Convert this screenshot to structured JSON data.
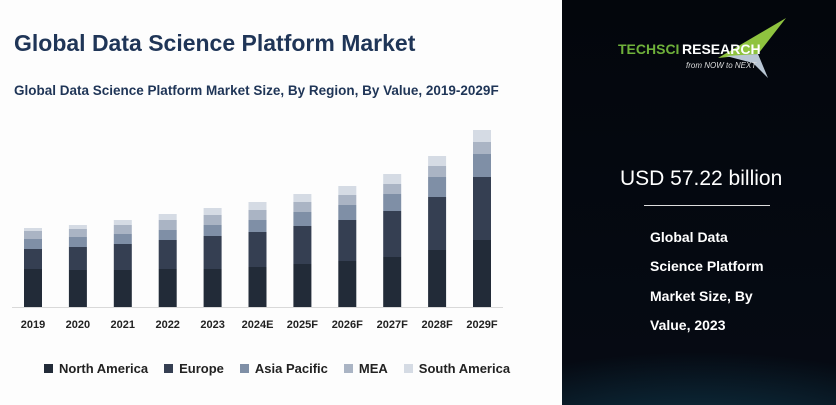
{
  "title": "Global Data Science Platform Market",
  "chart_data": {
    "type": "bar",
    "stacked": true,
    "title": "Global Data Science Platform Market Size, By Region, By Value, 2019-2029F",
    "categories": [
      "2019",
      "2020",
      "2021",
      "2022",
      "2023",
      "2024E",
      "2025F",
      "2026F",
      "2027F",
      "2028F",
      "2029F"
    ],
    "series": [
      {
        "name": "North America",
        "color": "#222b38",
        "values": [
          38,
          37,
          37,
          38,
          38,
          40,
          43,
          46,
          50,
          57,
          67
        ]
      },
      {
        "name": "Europe",
        "color": "#353f52",
        "values": [
          20,
          23,
          26,
          29,
          33,
          35,
          38,
          41,
          46,
          53,
          63
        ]
      },
      {
        "name": "Asia Pacific",
        "color": "#7f8fa6",
        "values": [
          10,
          10,
          10,
          10,
          11,
          12,
          14,
          15,
          17,
          20,
          23
        ]
      },
      {
        "name": "MEA",
        "color": "#aab4c4",
        "values": [
          8,
          8,
          9,
          10,
          10,
          10,
          10,
          10,
          10,
          11,
          12
        ]
      },
      {
        "name": "South America",
        "color": "#d5dbe4",
        "values": [
          3,
          4,
          5,
          6,
          7,
          8,
          8,
          9,
          10,
          10,
          12
        ]
      }
    ],
    "y_axis_shown": false,
    "grid": false,
    "legend_position": "bottom"
  },
  "panel": {
    "logo": {
      "brand_a": "TECHSCI",
      "brand_b": "RESEARCH",
      "tagline": "from NOW to NEXT"
    },
    "value": "USD 57.22 billion",
    "caption_lines": [
      "Global Data",
      "Science Platform",
      "Market Size, By",
      "Value, 2023"
    ]
  }
}
